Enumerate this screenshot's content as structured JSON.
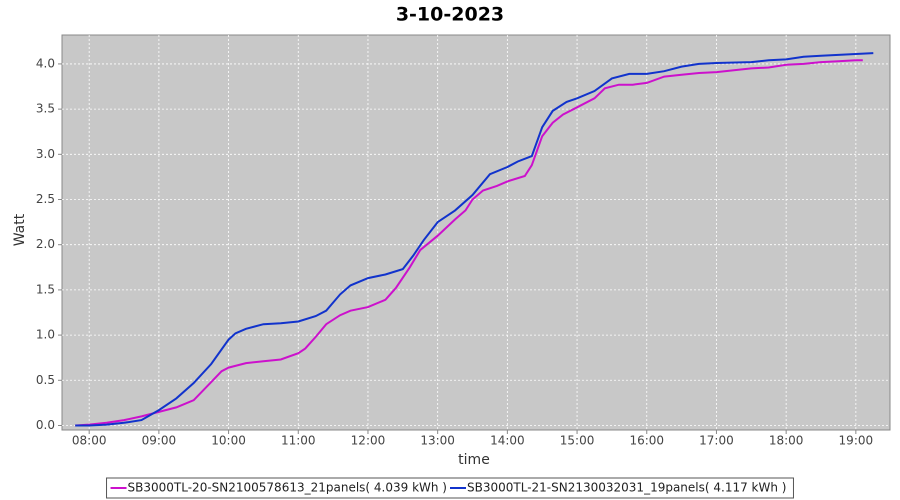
{
  "chart_data": {
    "type": "line",
    "title": "3-10-2023",
    "x_label": "time",
    "y_label": "Watt",
    "xlim": [
      7.61,
      19.49
    ],
    "ylim": [
      -0.05,
      4.32
    ],
    "xticks": [
      {
        "value": 8,
        "label": "08:00"
      },
      {
        "value": 9,
        "label": "09:00"
      },
      {
        "value": 10,
        "label": "10:00"
      },
      {
        "value": 11,
        "label": "11:00"
      },
      {
        "value": 12,
        "label": "12:00"
      },
      {
        "value": 13,
        "label": "13:00"
      },
      {
        "value": 14,
        "label": "14:00"
      },
      {
        "value": 15,
        "label": "15:00"
      },
      {
        "value": 16,
        "label": "16:00"
      },
      {
        "value": 17,
        "label": "17:00"
      },
      {
        "value": 18,
        "label": "18:00"
      },
      {
        "value": 19,
        "label": "19:00"
      }
    ],
    "yticks": [
      {
        "value": 0,
        "label": "0.0"
      },
      0.5,
      {
        "value": 1,
        "label": "1.0"
      },
      1.5,
      {
        "value": 2,
        "label": "2.0"
      },
      2.5,
      {
        "value": 3,
        "label": "3.0"
      },
      3.5,
      {
        "value": 4,
        "label": "4.0"
      }
    ],
    "grid": true,
    "legend": "bottom",
    "series": [
      {
        "name": "SB3000TL-20-SN2100578613_21panels( 4.039 kWh )",
        "color": "#cc11cc",
        "x": [
          7.8,
          8.0,
          8.25,
          8.5,
          8.75,
          9.0,
          9.25,
          9.5,
          9.75,
          9.9,
          10.0,
          10.25,
          10.5,
          10.75,
          11.0,
          11.1,
          11.25,
          11.4,
          11.6,
          11.75,
          12.0,
          12.25,
          12.4,
          12.6,
          12.75,
          13.0,
          13.25,
          13.4,
          13.5,
          13.65,
          13.85,
          14.0,
          14.25,
          14.35,
          14.5,
          14.65,
          14.8,
          15.0,
          15.25,
          15.4,
          15.6,
          15.8,
          16.0,
          16.25,
          16.5,
          16.75,
          17.0,
          17.25,
          17.5,
          17.75,
          18.0,
          18.25,
          18.5,
          18.75,
          19.0,
          19.1
        ],
        "values": [
          0,
          0.01,
          0.03,
          0.06,
          0.1,
          0.15,
          0.2,
          0.28,
          0.48,
          0.6,
          0.64,
          0.69,
          0.71,
          0.73,
          0.8,
          0.85,
          0.98,
          1.12,
          1.22,
          1.27,
          1.31,
          1.39,
          1.52,
          1.75,
          1.94,
          2.1,
          2.28,
          2.38,
          2.5,
          2.6,
          2.65,
          2.7,
          2.76,
          2.88,
          3.2,
          3.35,
          3.44,
          3.52,
          3.62,
          3.73,
          3.77,
          3.77,
          3.79,
          3.86,
          3.88,
          3.9,
          3.91,
          3.93,
          3.95,
          3.96,
          3.99,
          4.0,
          4.02,
          4.03,
          4.04,
          4.04
        ]
      },
      {
        "name": "SB3000TL-21-SN2130032031_19panels( 4.117 kWh )",
        "color": "#1133cc",
        "x": [
          7.8,
          8.0,
          8.25,
          8.5,
          8.75,
          9.0,
          9.25,
          9.5,
          9.75,
          10.0,
          10.1,
          10.25,
          10.5,
          10.75,
          11.0,
          11.25,
          11.4,
          11.6,
          11.75,
          12.0,
          12.25,
          12.5,
          12.65,
          12.8,
          13.0,
          13.25,
          13.5,
          13.75,
          14.0,
          14.15,
          14.35,
          14.5,
          14.65,
          14.85,
          15.0,
          15.25,
          15.5,
          15.75,
          16.0,
          16.25,
          16.5,
          16.75,
          17.0,
          17.5,
          17.75,
          18.0,
          18.25,
          18.5,
          18.75,
          19.0,
          19.25
        ],
        "values": [
          0,
          0,
          0.01,
          0.03,
          0.06,
          0.17,
          0.3,
          0.47,
          0.68,
          0.95,
          1.02,
          1.07,
          1.12,
          1.13,
          1.15,
          1.21,
          1.27,
          1.45,
          1.55,
          1.63,
          1.67,
          1.73,
          1.88,
          2.05,
          2.25,
          2.38,
          2.55,
          2.78,
          2.86,
          2.92,
          2.98,
          3.3,
          3.48,
          3.58,
          3.62,
          3.7,
          3.84,
          3.89,
          3.89,
          3.92,
          3.97,
          4.0,
          4.01,
          4.02,
          4.04,
          4.05,
          4.08,
          4.09,
          4.1,
          4.11,
          4.12
        ]
      }
    ]
  }
}
